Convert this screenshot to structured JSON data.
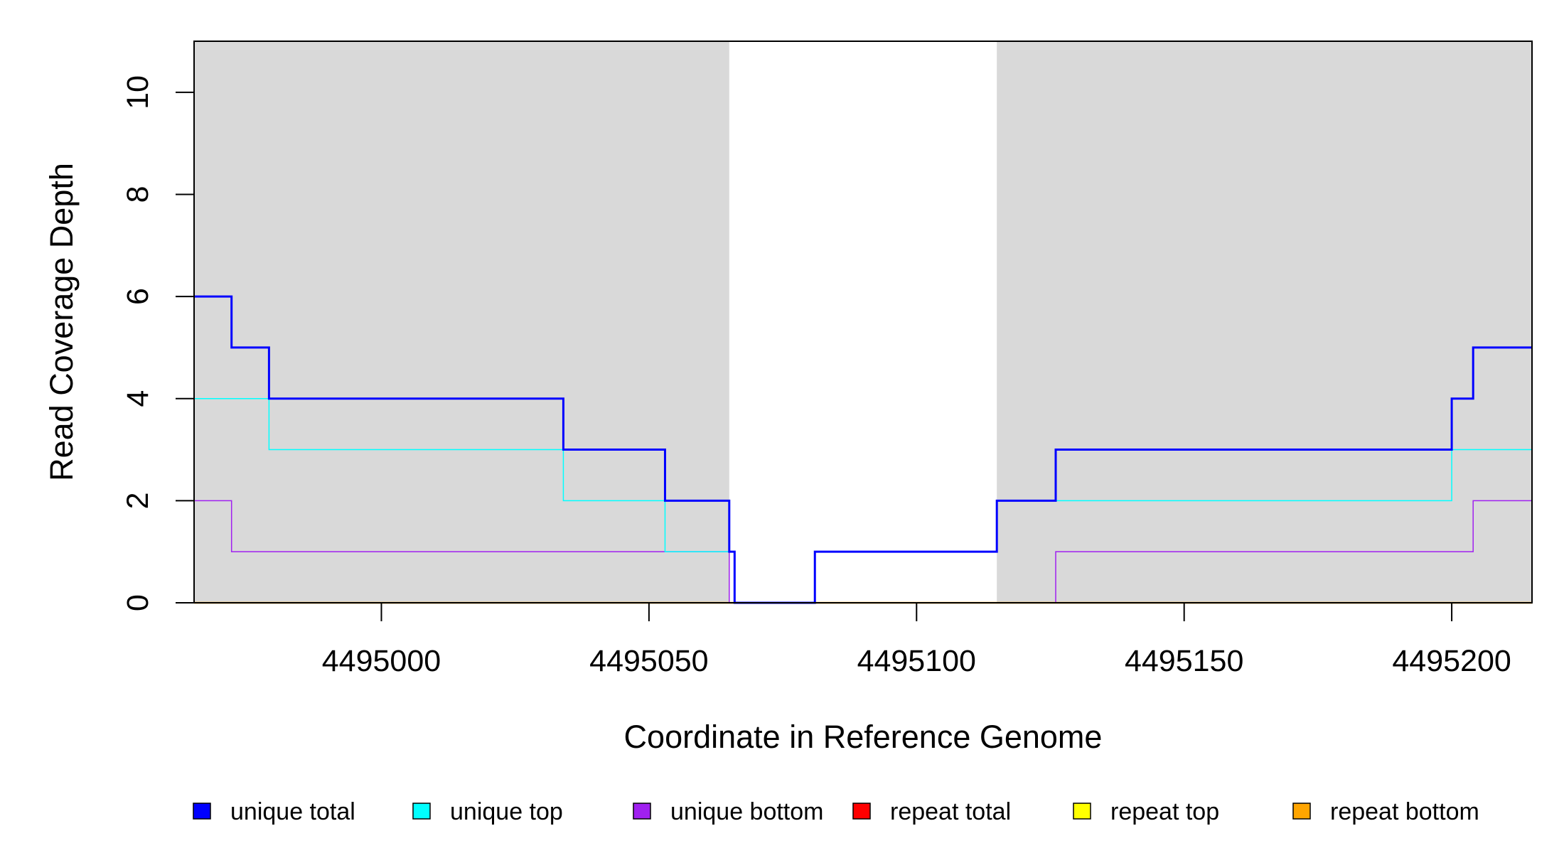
{
  "chart_data": {
    "type": "line",
    "step": true,
    "title": "",
    "xlabel": "Coordinate in Reference Genome",
    "ylabel": "Read Coverage Depth",
    "xlim": [
      4494965,
      4495215
    ],
    "ylim": [
      0,
      11
    ],
    "x_ticks": [
      4495000,
      4495050,
      4495100,
      4495150,
      4495200
    ],
    "x_tick_labels": [
      "4495000",
      "4495050",
      "4495100",
      "4495150",
      "4495200"
    ],
    "y_ticks": [
      0,
      2,
      4,
      6,
      8,
      10
    ],
    "y_tick_labels": [
      "0",
      "2",
      "4",
      "6",
      "8",
      "10"
    ],
    "shaded_regions": [
      {
        "x_start": 4494965,
        "x_end": 4495065,
        "color": "#d9d9d9"
      },
      {
        "x_start": 4495115,
        "x_end": 4495215,
        "color": "#d9d9d9"
      }
    ],
    "legend_position": "bottom",
    "series": [
      {
        "name": "unique total",
        "color": "#0000ff",
        "points": [
          [
            4494965,
            6
          ],
          [
            4494972,
            5
          ],
          [
            4494979,
            4
          ],
          [
            4495034,
            3
          ],
          [
            4495053,
            2
          ],
          [
            4495065,
            1
          ],
          [
            4495066,
            0
          ],
          [
            4495081,
            1
          ],
          [
            4495115,
            2
          ],
          [
            4495126,
            3
          ],
          [
            4495200,
            4
          ],
          [
            4495204,
            5
          ],
          [
            4495215,
            5
          ]
        ]
      },
      {
        "name": "unique top",
        "color": "#00ffff",
        "points": [
          [
            4494965,
            4
          ],
          [
            4494979,
            3
          ],
          [
            4495034,
            2
          ],
          [
            4495053,
            1
          ],
          [
            4495066,
            0
          ],
          [
            4495081,
            1
          ],
          [
            4495115,
            2
          ],
          [
            4495200,
            3
          ],
          [
            4495215,
            3
          ]
        ]
      },
      {
        "name": "unique bottom",
        "color": "#a020f0",
        "points": [
          [
            4494965,
            2
          ],
          [
            4494972,
            1
          ],
          [
            4495065,
            0
          ],
          [
            4495126,
            1
          ],
          [
            4495204,
            2
          ],
          [
            4495215,
            2
          ]
        ]
      },
      {
        "name": "repeat total",
        "color": "#ff0000",
        "points": [
          [
            4494965,
            0
          ],
          [
            4495215,
            0
          ]
        ]
      },
      {
        "name": "repeat top",
        "color": "#ffff00",
        "points": [
          [
            4494965,
            0
          ],
          [
            4495215,
            0
          ]
        ]
      },
      {
        "name": "repeat bottom",
        "color": "#ffa500",
        "points": [
          [
            4494965,
            0
          ],
          [
            4495215,
            0
          ]
        ]
      }
    ]
  }
}
